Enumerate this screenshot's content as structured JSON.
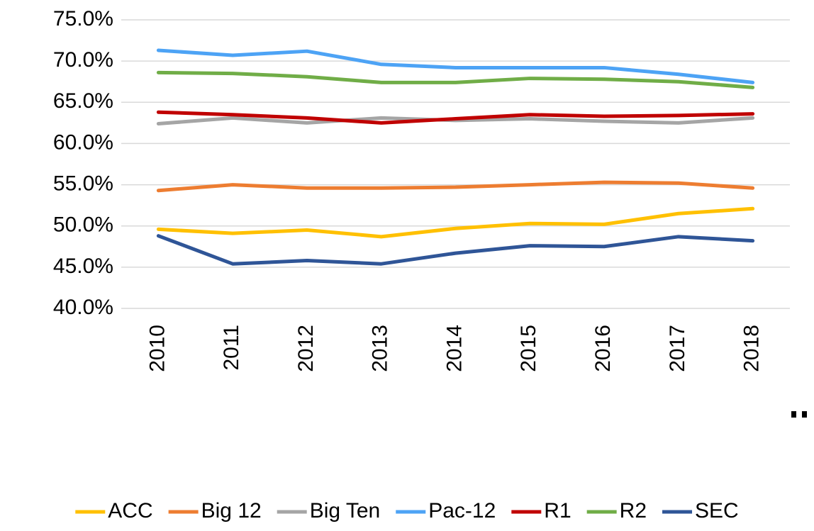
{
  "chart_data": {
    "type": "line",
    "categories": [
      "2010",
      "2011",
      "2012",
      "2013",
      "2014",
      "2015",
      "2016",
      "2017",
      "2018"
    ],
    "series": [
      {
        "name": "ACC",
        "color": "#ffc000",
        "values": [
          49.6,
          49.1,
          49.5,
          48.7,
          49.7,
          50.3,
          50.2,
          51.5,
          52.1
        ]
      },
      {
        "name": "Big 12",
        "color": "#ed7d31",
        "values": [
          54.3,
          55.0,
          54.6,
          54.6,
          54.7,
          55.0,
          55.3,
          55.2,
          54.6
        ]
      },
      {
        "name": "Big Ten",
        "color": "#a5a5a5",
        "values": [
          62.4,
          63.1,
          62.5,
          63.1,
          62.8,
          63.0,
          62.7,
          62.5,
          63.1
        ]
      },
      {
        "name": "Pac-12",
        "color": "#4da3f5",
        "values": [
          71.3,
          70.7,
          71.2,
          69.6,
          69.2,
          69.2,
          69.2,
          68.4,
          67.4
        ]
      },
      {
        "name": "R1",
        "color": "#c00000",
        "values": [
          63.8,
          63.5,
          63.1,
          62.5,
          63.0,
          63.5,
          63.3,
          63.4,
          63.6
        ]
      },
      {
        "name": "R2",
        "color": "#70ad47",
        "values": [
          68.6,
          68.5,
          68.1,
          67.4,
          67.4,
          67.9,
          67.8,
          67.5,
          66.8
        ]
      },
      {
        "name": "SEC",
        "color": "#2f5597",
        "values": [
          48.8,
          45.4,
          45.8,
          45.4,
          46.7,
          47.6,
          47.5,
          48.7,
          48.2
        ]
      }
    ],
    "ylim": [
      40,
      75
    ],
    "yticks": [
      {
        "value": 40,
        "label": "40.0%"
      },
      {
        "value": 45,
        "label": "45.0%"
      },
      {
        "value": 50,
        "label": "50.0%"
      },
      {
        "value": 55,
        "label": "55.0%"
      },
      {
        "value": 60,
        "label": "60.0%"
      },
      {
        "value": 65,
        "label": "65.0%"
      },
      {
        "value": 70,
        "label": "70.0%"
      },
      {
        "value": 75,
        "label": "75.0%"
      }
    ],
    "grid": true,
    "legend": "bottom"
  }
}
